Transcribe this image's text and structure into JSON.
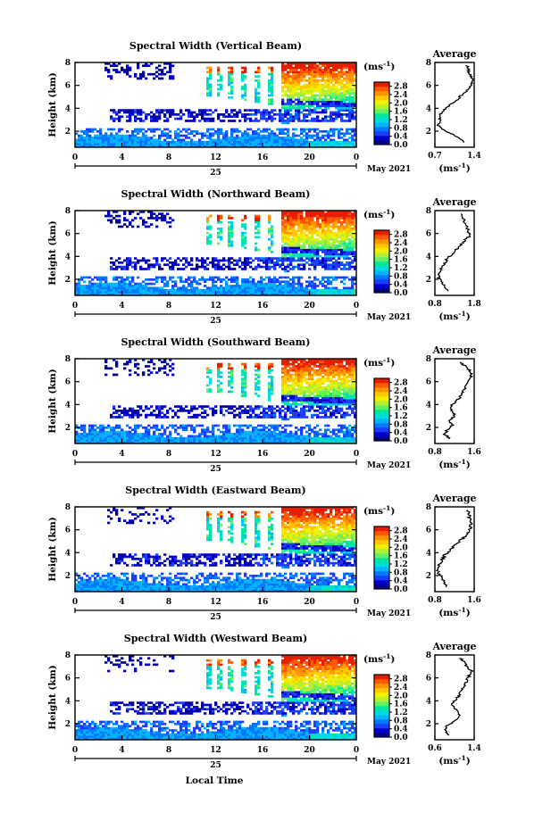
{
  "chart_data": {
    "type": "heatmap",
    "x_ticks": [
      "0",
      "4",
      "8",
      "12",
      "16",
      "20",
      "0"
    ],
    "x_range_hours": [
      0,
      24
    ],
    "day_label": "25",
    "month_label": "May 2021",
    "ylabel": "Height (km)",
    "y_ticks": [
      "2",
      "4",
      "6",
      "8"
    ],
    "y_range_km": [
      0.6,
      8
    ],
    "xlabel_bottom": "Local Time",
    "colorbar": {
      "unit": "(ms",
      "unit_exp": "-1",
      "unit_close": ")",
      "ticks": [
        "0.0",
        "0.4",
        "0.8",
        "1.2",
        "1.6",
        "2.0",
        "2.4",
        "2.8"
      ],
      "range": [
        0,
        3.0
      ],
      "colors": [
        "#000080",
        "#0000c8",
        "#1e3cff",
        "#0078ff",
        "#00b4ff",
        "#00dcdc",
        "#00e6a0",
        "#64f064",
        "#b4f032",
        "#f0f000",
        "#ffc800",
        "#ff9600",
        "#ff5a00",
        "#e61e00"
      ]
    },
    "panels": [
      {
        "title": "Spectral Width (Vertical Beam)",
        "avg_title": "Average",
        "avg_xticks": [
          "0.7",
          "1.4"
        ],
        "avg_xrange": [
          0.7,
          1.4
        ],
        "avg_unit": "(ms",
        "avg_unit_exp": "-1",
        "avg_unit_close": ")",
        "avg_profile": [
          [
            1.2,
            1.0
          ],
          [
            1.15,
            1.4
          ],
          [
            1.0,
            1.8
          ],
          [
            0.8,
            2.2
          ],
          [
            0.76,
            2.6
          ],
          [
            0.8,
            3.0
          ],
          [
            0.78,
            3.4
          ],
          [
            0.85,
            3.8
          ],
          [
            0.95,
            4.2
          ],
          [
            1.05,
            4.6
          ],
          [
            1.15,
            5.0
          ],
          [
            1.25,
            5.4
          ],
          [
            1.3,
            5.8
          ],
          [
            1.35,
            6.2
          ],
          [
            1.38,
            6.6
          ],
          [
            1.32,
            7.0
          ],
          [
            1.3,
            7.4
          ],
          [
            1.25,
            7.8
          ]
        ]
      },
      {
        "title": "Spectral Width (Northward Beam)",
        "avg_title": "Average",
        "avg_xticks": [
          "0.8",
          "1.8"
        ],
        "avg_xrange": [
          0.8,
          1.8
        ],
        "avg_unit": "(ms",
        "avg_unit_exp": "-1",
        "avg_unit_close": ")",
        "avg_profile": [
          [
            1.15,
            1.0
          ],
          [
            1.05,
            1.4
          ],
          [
            0.95,
            1.8
          ],
          [
            0.9,
            2.2
          ],
          [
            0.92,
            2.6
          ],
          [
            0.95,
            3.0
          ],
          [
            1.05,
            3.4
          ],
          [
            1.1,
            3.8
          ],
          [
            1.25,
            4.2
          ],
          [
            1.35,
            4.6
          ],
          [
            1.45,
            5.0
          ],
          [
            1.55,
            5.4
          ],
          [
            1.7,
            5.8
          ],
          [
            1.65,
            6.2
          ],
          [
            1.6,
            6.6
          ],
          [
            1.55,
            7.0
          ],
          [
            1.5,
            7.4
          ],
          [
            1.45,
            7.8
          ]
        ]
      },
      {
        "title": "Spectral Width (Southward Beam)",
        "avg_title": "Average",
        "avg_xticks": [
          "0.8",
          "1.6"
        ],
        "avg_xrange": [
          0.8,
          1.6
        ],
        "avg_unit": "(ms",
        "avg_unit_exp": "-1",
        "avg_unit_close": ")",
        "avg_profile": [
          [
            1.1,
            1.0
          ],
          [
            1.0,
            1.4
          ],
          [
            1.05,
            1.8
          ],
          [
            1.15,
            2.2
          ],
          [
            1.1,
            2.6
          ],
          [
            1.2,
            3.0
          ],
          [
            1.15,
            3.4
          ],
          [
            1.1,
            3.8
          ],
          [
            1.2,
            4.2
          ],
          [
            1.3,
            4.6
          ],
          [
            1.35,
            5.0
          ],
          [
            1.4,
            5.4
          ],
          [
            1.45,
            5.8
          ],
          [
            1.5,
            6.2
          ],
          [
            1.55,
            6.6
          ],
          [
            1.5,
            7.0
          ],
          [
            1.4,
            7.4
          ],
          [
            1.3,
            7.8
          ]
        ]
      },
      {
        "title": "Spectral Width (Eastward Beam)",
        "avg_title": "Average",
        "avg_xticks": [
          "0.8",
          "1.6"
        ],
        "avg_xrange": [
          0.8,
          1.6
        ],
        "avg_unit": "(ms",
        "avg_unit_exp": "-1",
        "avg_unit_close": ")",
        "avg_profile": [
          [
            1.05,
            1.0
          ],
          [
            1.0,
            1.4
          ],
          [
            0.95,
            1.8
          ],
          [
            0.88,
            2.2
          ],
          [
            0.85,
            2.6
          ],
          [
            0.9,
            3.0
          ],
          [
            0.95,
            3.4
          ],
          [
            1.0,
            3.8
          ],
          [
            1.1,
            4.2
          ],
          [
            1.2,
            4.6
          ],
          [
            1.3,
            5.0
          ],
          [
            1.4,
            5.4
          ],
          [
            1.5,
            5.8
          ],
          [
            1.52,
            6.2
          ],
          [
            1.55,
            6.6
          ],
          [
            1.5,
            7.0
          ],
          [
            1.5,
            7.4
          ],
          [
            1.45,
            7.8
          ]
        ]
      },
      {
        "title": "Spectral Width (Westward Beam)",
        "avg_title": "Average",
        "avg_xticks": [
          "0.6",
          "1.4"
        ],
        "avg_xrange": [
          0.6,
          1.4
        ],
        "avg_unit": "(ms",
        "avg_unit_exp": "-1",
        "avg_unit_close": ")",
        "avg_profile": [
          [
            0.9,
            1.0
          ],
          [
            0.8,
            1.4
          ],
          [
            0.82,
            1.8
          ],
          [
            1.0,
            2.2
          ],
          [
            1.1,
            2.6
          ],
          [
            1.05,
            3.0
          ],
          [
            1.0,
            3.4
          ],
          [
            0.95,
            3.8
          ],
          [
            1.05,
            4.2
          ],
          [
            1.1,
            4.6
          ],
          [
            1.15,
            5.0
          ],
          [
            1.2,
            5.4
          ],
          [
            1.25,
            5.8
          ],
          [
            1.3,
            6.2
          ],
          [
            1.35,
            6.6
          ],
          [
            1.25,
            7.0
          ],
          [
            1.2,
            7.4
          ],
          [
            1.1,
            7.8
          ]
        ]
      }
    ]
  }
}
